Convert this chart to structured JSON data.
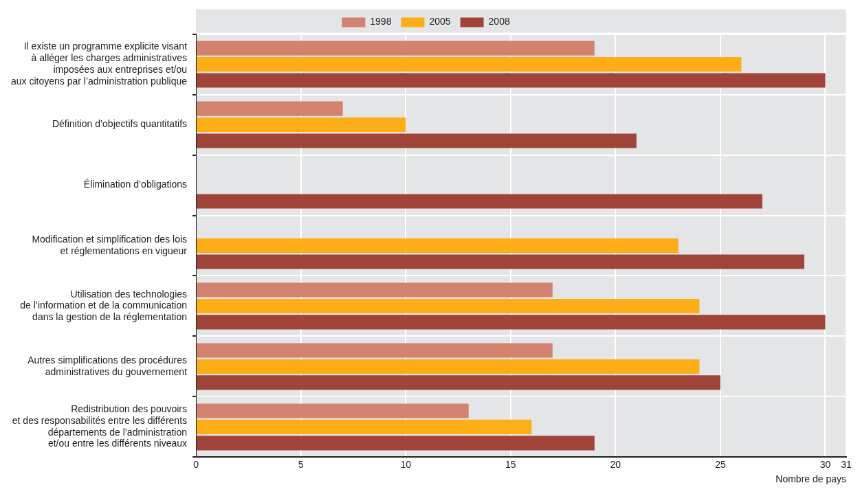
{
  "chart_data": {
    "type": "bar",
    "orientation": "horizontal",
    "xlabel": "Nombre de pays",
    "categories": [
      "Il existe un programme explicite visant\nà alléger les charges administratives\nimposées aux entreprises et/ou\naux citoyens par l’administration publique",
      "Définition d’objectifs quantitatifs",
      "Élimination d’obligations",
      "Modification et simplification des lois\net réglementations en vigueur",
      "Utilisation des technologies\nde l’information et de la communication\ndans la gestion de la réglementation",
      "Autres simplifications des procédures\nadministratives du gouvernement",
      "Redistribution des pouvoirs\net des responsabilités entre les différents\ndépartements de l’administration\net/ou entre les différents niveaux"
    ],
    "series": [
      {
        "name": "1998",
        "color": "#d48270",
        "values": [
          19,
          7,
          null,
          null,
          17,
          17,
          13
        ]
      },
      {
        "name": "2005",
        "color": "#fdae17",
        "values": [
          26,
          10,
          null,
          23,
          24,
          24,
          16
        ]
      },
      {
        "name": "2008",
        "color": "#a0443a",
        "values": [
          30,
          21,
          27,
          29,
          30,
          25,
          19
        ]
      }
    ],
    "xlim": [
      0,
      31
    ],
    "xticks": [
      0,
      5,
      10,
      15,
      20,
      25,
      30,
      31
    ],
    "grid": true,
    "legend": "top"
  }
}
